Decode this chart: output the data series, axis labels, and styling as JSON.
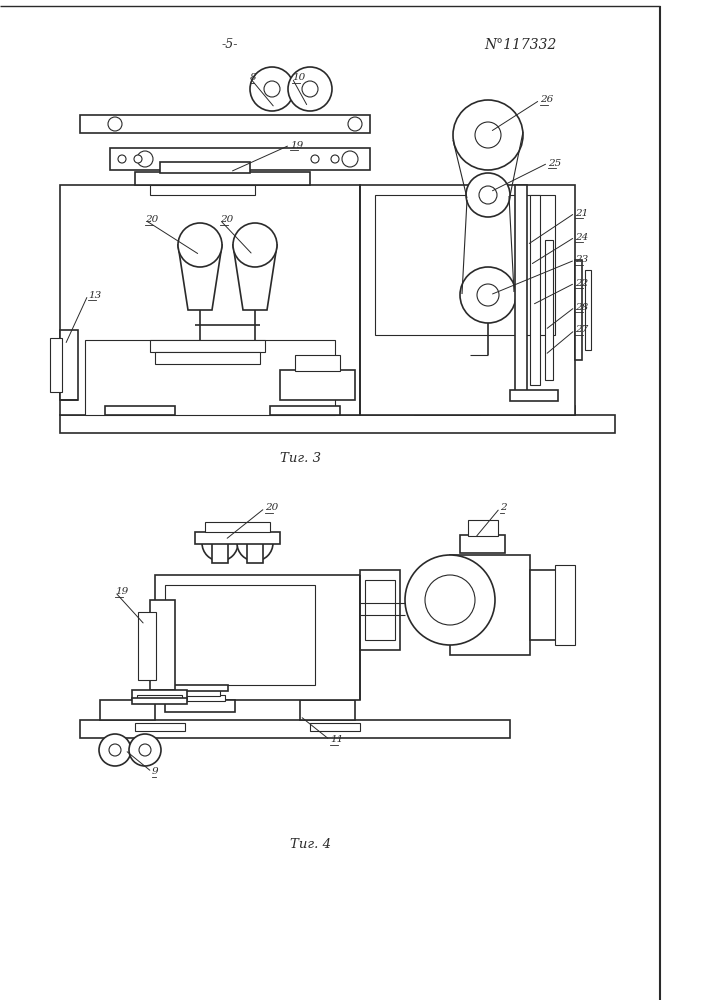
{
  "title_page": "-5-",
  "patent_number": "N°117332",
  "fig3_label": "Τиг. 3",
  "fig4_label": "Τиг. 4",
  "background_color": "#ffffff",
  "line_color": "#2a2a2a"
}
